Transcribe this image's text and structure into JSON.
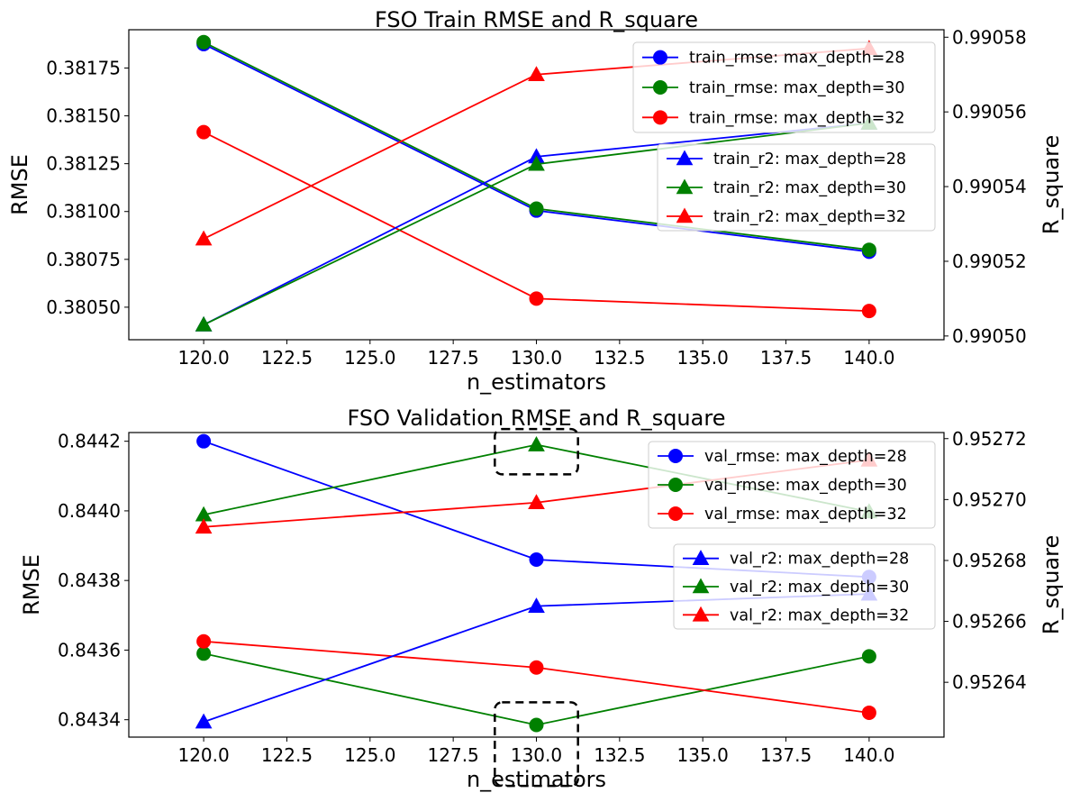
{
  "chart_data": [
    {
      "type": "line",
      "title": "FSO Train RMSE and R_square",
      "xlabel": "n_estimators",
      "ylabel": "RMSE",
      "y2label": "R_square",
      "x": [
        120,
        130,
        140
      ],
      "xlim": [
        117.75,
        142.25
      ],
      "xticks": [
        "120.0",
        "122.5",
        "125.0",
        "127.5",
        "130.0",
        "132.5",
        "135.0",
        "137.5",
        "140.0"
      ],
      "ylim": [
        0.38033,
        0.38195
      ],
      "yticks": [
        "0.38050",
        "0.38075",
        "0.38100",
        "0.38125",
        "0.38150",
        "0.38175"
      ],
      "y2lim": [
        0.990499,
        0.990582
      ],
      "y2ticks": [
        "0.99050",
        "0.99052",
        "0.99054",
        "0.99056",
        "0.99058"
      ],
      "grid": false,
      "series": [
        {
          "name": "train_rmse: max_depth=28",
          "axis": "left",
          "marker": "circle",
          "color": "#0000ff",
          "values": [
            0.381875,
            0.381005,
            0.38079
          ]
        },
        {
          "name": "train_rmse: max_depth=30",
          "axis": "left",
          "marker": "circle",
          "color": "#008000",
          "values": [
            0.381885,
            0.381015,
            0.3808
          ]
        },
        {
          "name": "train_rmse: max_depth=32",
          "axis": "left",
          "marker": "circle",
          "color": "#ff0000",
          "values": [
            0.381415,
            0.380545,
            0.38048
          ]
        },
        {
          "name": "train_r2: max_depth=28",
          "axis": "right",
          "marker": "triangle",
          "color": "#0000ff",
          "values": [
            0.990503,
            0.990548,
            0.990557
          ]
        },
        {
          "name": "train_r2: max_depth=30",
          "axis": "right",
          "marker": "triangle",
          "color": "#008000",
          "values": [
            0.990503,
            0.990546,
            0.990557
          ]
        },
        {
          "name": "train_r2: max_depth=32",
          "axis": "right",
          "marker": "triangle",
          "color": "#ff0000",
          "values": [
            0.990526,
            0.99057,
            0.990577
          ]
        }
      ],
      "legend_rmse_placement": "top-right",
      "legend_r2_placement": "center-right"
    },
    {
      "type": "line",
      "title": "FSO Validation RMSE and R_square",
      "xlabel": "n_estimators",
      "ylabel": "RMSE",
      "y2label": "R_square",
      "x": [
        120,
        130,
        140
      ],
      "xlim": [
        117.75,
        142.25
      ],
      "xticks": [
        "120.0",
        "122.5",
        "125.0",
        "127.5",
        "130.0",
        "132.5",
        "135.0",
        "137.5",
        "140.0"
      ],
      "ylim": [
        0.84335,
        0.844225
      ],
      "yticks": [
        "0.8434",
        "0.8436",
        "0.8438",
        "0.8440",
        "0.8442"
      ],
      "y2lim": [
        0.952622,
        0.952722
      ],
      "y2ticks": [
        "0.95264",
        "0.95266",
        "0.95268",
        "0.95270",
        "0.95272"
      ],
      "grid": false,
      "series": [
        {
          "name": "val_rmse: max_depth=28",
          "axis": "left",
          "marker": "circle",
          "color": "#0000ff",
          "values": [
            0.8442,
            0.84386,
            0.84381
          ]
        },
        {
          "name": "val_rmse: max_depth=30",
          "axis": "left",
          "marker": "circle",
          "color": "#008000",
          "values": [
            0.84359,
            0.843385,
            0.843582
          ]
        },
        {
          "name": "val_rmse: max_depth=32",
          "axis": "left",
          "marker": "circle",
          "color": "#ff0000",
          "values": [
            0.843625,
            0.84355,
            0.84342
          ]
        },
        {
          "name": "val_r2: max_depth=28",
          "axis": "right",
          "marker": "triangle",
          "color": "#0000ff",
          "values": [
            0.952627,
            0.952665,
            0.952669
          ]
        },
        {
          "name": "val_r2: max_depth=30",
          "axis": "right",
          "marker": "triangle",
          "color": "#008000",
          "values": [
            0.952695,
            0.952718,
            0.952696
          ]
        },
        {
          "name": "val_r2: max_depth=32",
          "axis": "right",
          "marker": "triangle",
          "color": "#ff0000",
          "values": [
            0.952691,
            0.952699,
            0.952713
          ]
        }
      ],
      "legend_rmse_placement": "top-right",
      "legend_r2_placement": "center-right",
      "highlight_boxes": [
        {
          "x": [
            128.75,
            131.25
          ],
          "y": [
            0.844105,
            0.844235
          ]
        },
        {
          "x": [
            128.75,
            131.25
          ],
          "y": [
            0.84321,
            0.84345
          ]
        }
      ]
    }
  ]
}
